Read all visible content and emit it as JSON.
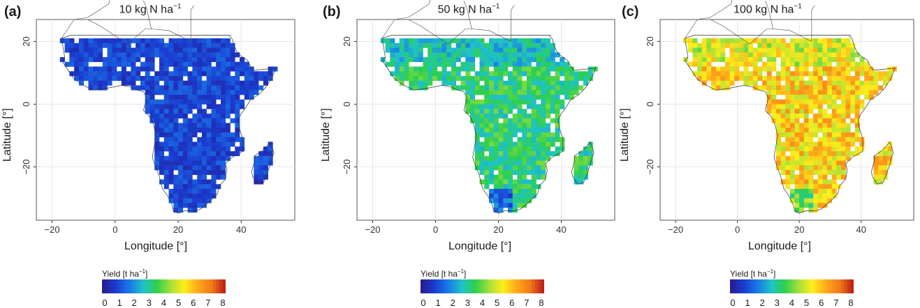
{
  "panels": [
    {
      "label": "(a)",
      "title": "10 kg N ha",
      "title_sup": "−1",
      "level": 1.0
    },
    {
      "label": "(b)",
      "title": "50 kg N ha",
      "title_sup": "−1",
      "level": 3.3
    },
    {
      "label": "(c)",
      "title": "100 kg N ha",
      "title_sup": "−1",
      "level": 5.6
    }
  ],
  "axes": {
    "xlabel": "Longitude [°]",
    "ylabel": "Latitude [°]",
    "xticks": [
      "−20",
      "0",
      "20",
      "40"
    ],
    "yticks": [
      "20",
      "0",
      "−20"
    ],
    "x_values": [
      -20,
      0,
      20,
      40
    ],
    "y_values": [
      20,
      0,
      -20
    ]
  },
  "legend": {
    "title": "Yield [t ha",
    "title_sup": "−1",
    "title_end": "]",
    "ticks": [
      "0",
      "1",
      "2",
      "3",
      "4",
      "5",
      "6",
      "7",
      "8"
    ],
    "range": [
      0,
      8
    ]
  },
  "colors": {
    "scale": [
      "#2a1a8c",
      "#1a3cd0",
      "#1a78e8",
      "#1fc2c8",
      "#2ed04a",
      "#a6e03a",
      "#ffee1a",
      "#ffa81a",
      "#f07818",
      "#b81818"
    ]
  }
}
